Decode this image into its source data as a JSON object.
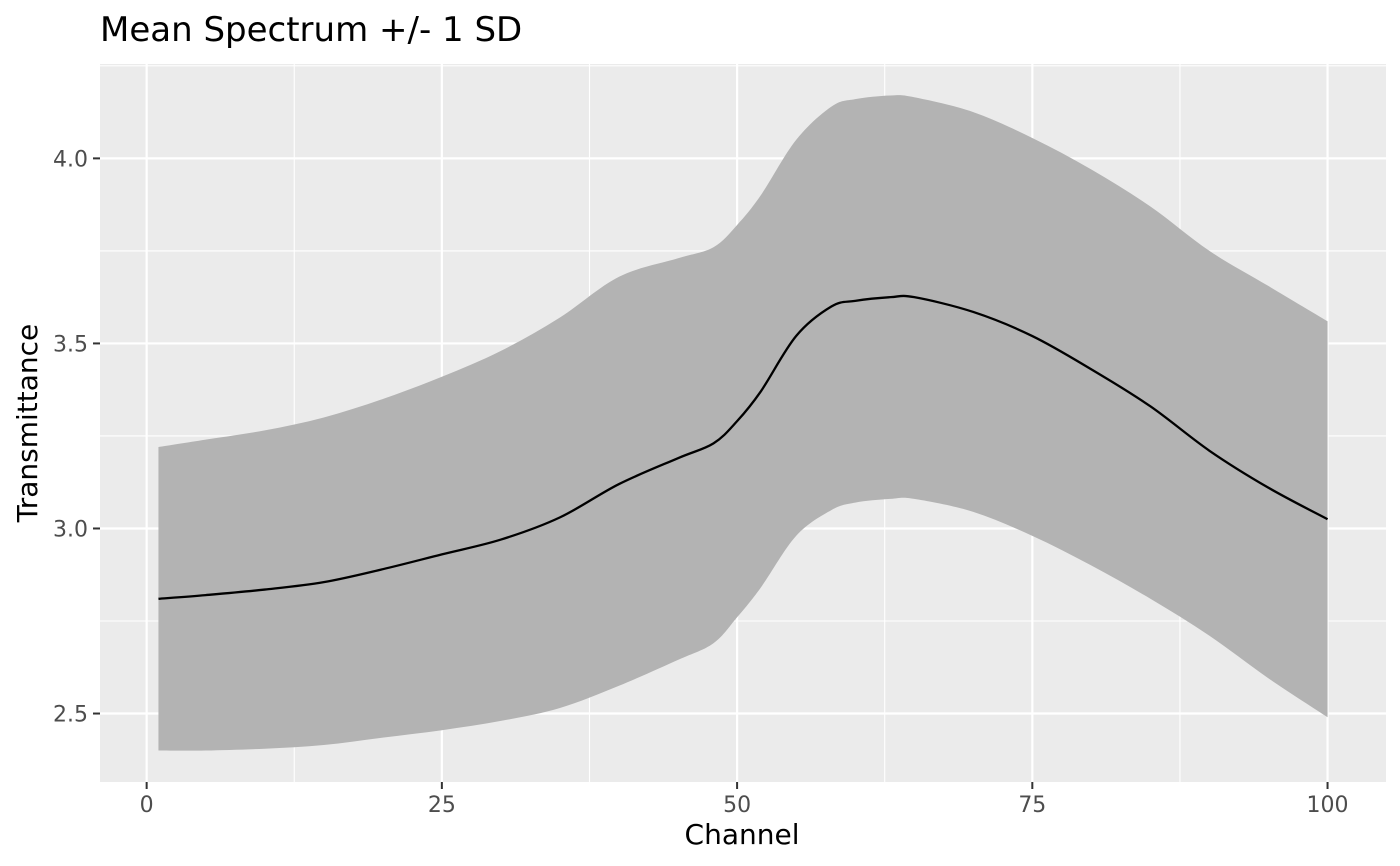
{
  "chart_data": {
    "type": "area",
    "title": "Mean Spectrum +/- 1 SD",
    "xlabel": "Channel",
    "ylabel": "Transmittance",
    "xlim": [
      -3.95,
      104.95
    ],
    "ylim": [
      2.315,
      4.255
    ],
    "x_ticks": [
      0,
      25,
      50,
      75,
      100
    ],
    "x_tick_labels": [
      "0",
      "25",
      "50",
      "75",
      "100"
    ],
    "y_ticks": [
      2.5,
      3.0,
      3.5,
      4.0
    ],
    "y_tick_labels": [
      "2.5",
      "3.0",
      "3.5",
      "4.0"
    ],
    "grid": true,
    "legend": "none",
    "colors": {
      "panel_background": "#ebebeb",
      "grid_line": "#ffffff",
      "band_fill": "#b3b3b3",
      "mean_line": "#000000",
      "tick_text": "#4d4d4d"
    },
    "x": [
      1,
      5,
      10,
      15,
      20,
      25,
      30,
      35,
      40,
      45,
      48,
      50,
      52,
      55,
      58,
      60,
      63,
      65,
      70,
      75,
      80,
      85,
      90,
      95,
      100
    ],
    "series": [
      {
        "values": [
          2.81,
          2.82,
          2.835,
          2.855,
          2.89,
          2.93,
          2.97,
          3.03,
          3.12,
          3.19,
          3.23,
          3.29,
          3.37,
          3.52,
          3.6,
          3.615,
          3.625,
          3.625,
          3.585,
          3.52,
          3.43,
          3.33,
          3.21,
          3.11,
          3.025
        ]
      },
      {
        "values": [
          3.22,
          3.24,
          3.265,
          3.3,
          3.35,
          3.41,
          3.48,
          3.57,
          3.68,
          3.73,
          3.76,
          3.82,
          3.9,
          4.05,
          4.14,
          4.16,
          4.17,
          4.165,
          4.125,
          4.055,
          3.97,
          3.87,
          3.75,
          3.655,
          3.56
        ]
      },
      {
        "values": [
          2.4,
          2.4,
          2.405,
          2.415,
          2.435,
          2.455,
          2.48,
          2.515,
          2.575,
          2.645,
          2.69,
          2.76,
          2.84,
          2.98,
          3.05,
          3.07,
          3.08,
          3.08,
          3.045,
          2.98,
          2.9,
          2.81,
          2.71,
          2.595,
          2.49
        ]
      }
    ]
  }
}
